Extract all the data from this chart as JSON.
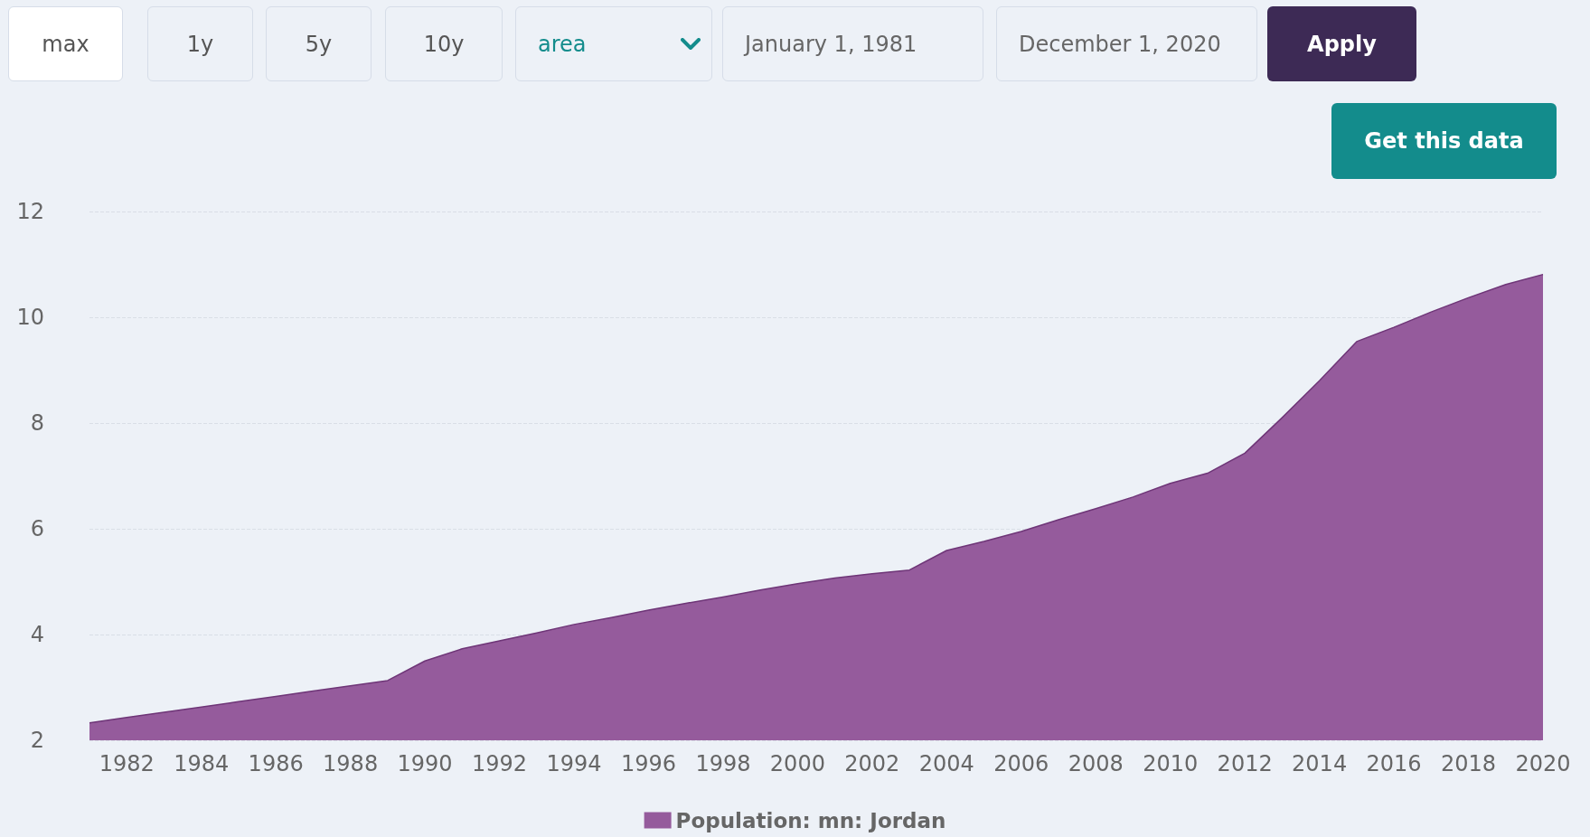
{
  "chart_data": {
    "type": "area",
    "annotations": [
      "max",
      "1y",
      "5y",
      "10y",
      "area",
      "January 1, 1981",
      "December 1, 2020",
      "Apply",
      "Get this data"
    ],
    "x": [
      1981,
      1982,
      1983,
      1984,
      1985,
      1986,
      1987,
      1988,
      1989,
      1990,
      1991,
      1992,
      1993,
      1994,
      1995,
      1996,
      1997,
      1998,
      1999,
      2000,
      2001,
      2002,
      2003,
      2004,
      2005,
      2006,
      2007,
      2008,
      2009,
      2010,
      2011,
      2012,
      2013,
      2014,
      2015,
      2016,
      2017,
      2018,
      2019,
      2020
    ],
    "series": [
      {
        "name": "Population: mn: Jordan",
        "color": "#955b9c",
        "values": [
          2.33,
          2.43,
          2.53,
          2.63,
          2.73,
          2.83,
          2.93,
          3.03,
          3.13,
          3.5,
          3.73,
          3.88,
          4.03,
          4.19,
          4.32,
          4.46,
          4.59,
          4.71,
          4.84,
          4.96,
          5.07,
          5.15,
          5.22,
          5.59,
          5.76,
          5.95,
          6.17,
          6.38,
          6.6,
          6.86,
          7.05,
          7.43,
          8.1,
          8.8,
          9.54,
          9.81,
          10.1,
          10.37,
          10.62,
          10.81
        ]
      }
    ],
    "xlim": [
      1981,
      2020
    ],
    "xticks": [
      1982,
      1984,
      1986,
      1988,
      1990,
      1992,
      1994,
      1996,
      1998,
      2000,
      2002,
      2004,
      2006,
      2008,
      2010,
      2012,
      2014,
      2016,
      2018,
      2020
    ],
    "ylim": [
      2,
      12
    ],
    "yticks": [
      2,
      4,
      6,
      8,
      10,
      12
    ],
    "grid": "y",
    "legend": "bottom",
    "marker": "none"
  }
}
